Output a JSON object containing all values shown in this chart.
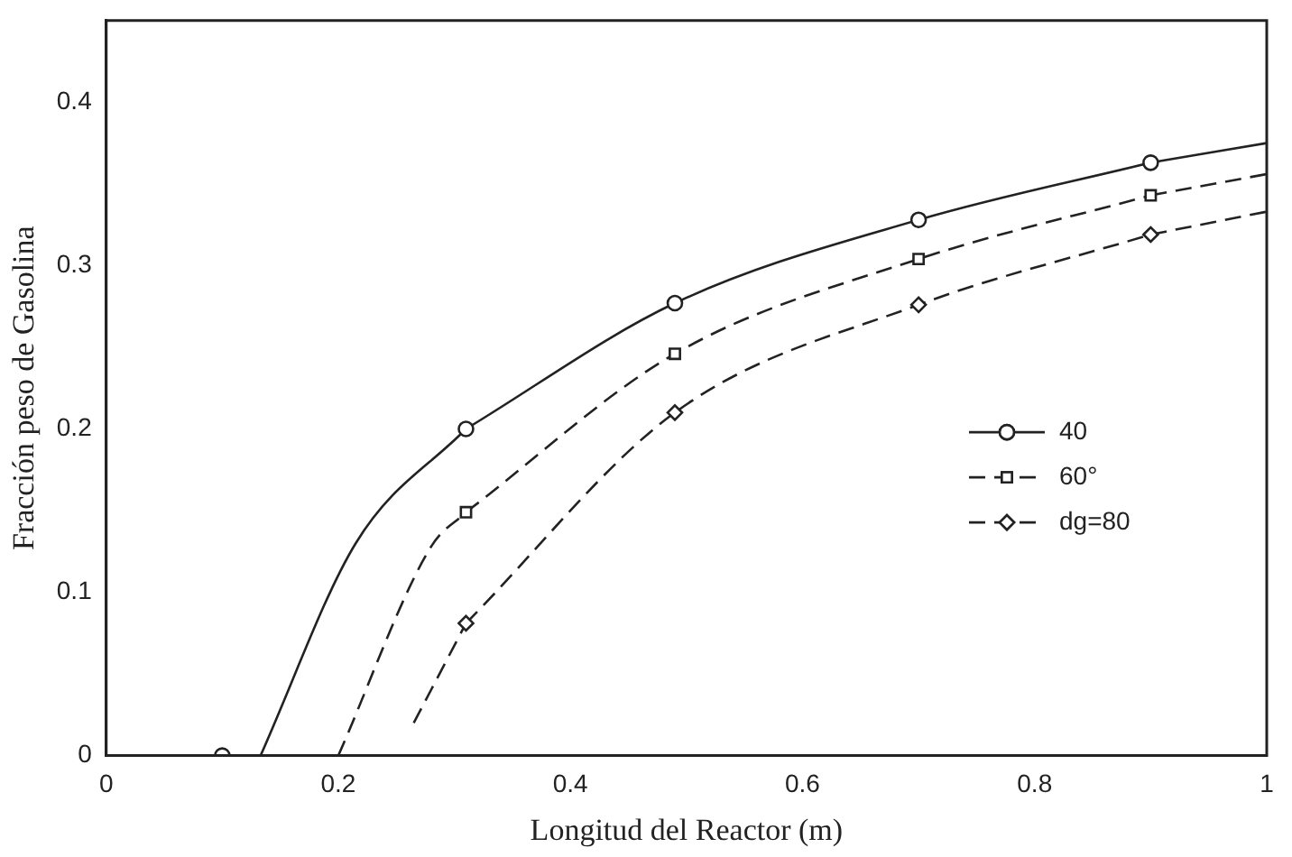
{
  "chart_data": {
    "type": "line",
    "xlabel": "Longitud del Reactor (m)",
    "ylabel": "Fracción peso de Gasolina",
    "xlim": [
      0,
      1
    ],
    "ylim": [
      0,
      0.45
    ],
    "xticks": [
      0,
      0.2,
      0.4,
      0.6,
      0.8,
      1
    ],
    "yticks": [
      0,
      0.1,
      0.2,
      0.3,
      0.4
    ],
    "grid": false,
    "legend": "right",
    "series": [
      {
        "name": "40",
        "color": "#222222",
        "line_style": "solid",
        "marker": "circle",
        "x": [
          0.31,
          0.49,
          0.7,
          0.9
        ],
        "values": [
          0.2,
          0.277,
          0.328,
          0.363
        ]
      },
      {
        "name": "60°",
        "color": "#222222",
        "line_style": "dashed",
        "marker": "square",
        "x": [
          0.31,
          0.49,
          0.7,
          0.9
        ],
        "values": [
          0.149,
          0.246,
          0.304,
          0.343
        ]
      },
      {
        "name": "dg=80",
        "color": "#222222",
        "line_style": "dashed",
        "marker": "diamond",
        "x": [
          0.31,
          0.49,
          0.7,
          0.9
        ],
        "values": [
          0.081,
          0.21,
          0.276,
          0.319
        ]
      },
      {
        "color": "#222222",
        "line_style": "solid",
        "marker": "none",
        "x": [
          0.133,
          0.215,
          0.31
        ],
        "values": [
          0,
          0.13,
          0.2
        ]
      },
      {
        "color": "#222222",
        "line_style": "solid",
        "marker": "none",
        "x": [
          0.9,
          1.0
        ],
        "values": [
          0.363,
          0.375
        ]
      },
      {
        "color": "#222222",
        "line_style": "dashed",
        "marker": "none",
        "x": [
          0.2,
          0.28,
          0.31
        ],
        "values": [
          0,
          0.128,
          0.149
        ]
      },
      {
        "color": "#222222",
        "line_style": "dashed",
        "marker": "none",
        "x": [
          0.9,
          1.0
        ],
        "values": [
          0.343,
          0.356
        ]
      },
      {
        "color": "#222222",
        "line_style": "dashed",
        "marker": "none",
        "x": [
          0.265,
          0.31
        ],
        "values": [
          0.02,
          0.081
        ]
      },
      {
        "color": "#222222",
        "line_style": "dashed",
        "marker": "none",
        "x": [
          0.9,
          1.0
        ],
        "values": [
          0.319,
          0.333
        ]
      },
      {
        "type": "scatter",
        "color": "#222222",
        "marker": "circle",
        "x": [
          0.1
        ],
        "values": [
          0
        ]
      }
    ]
  }
}
